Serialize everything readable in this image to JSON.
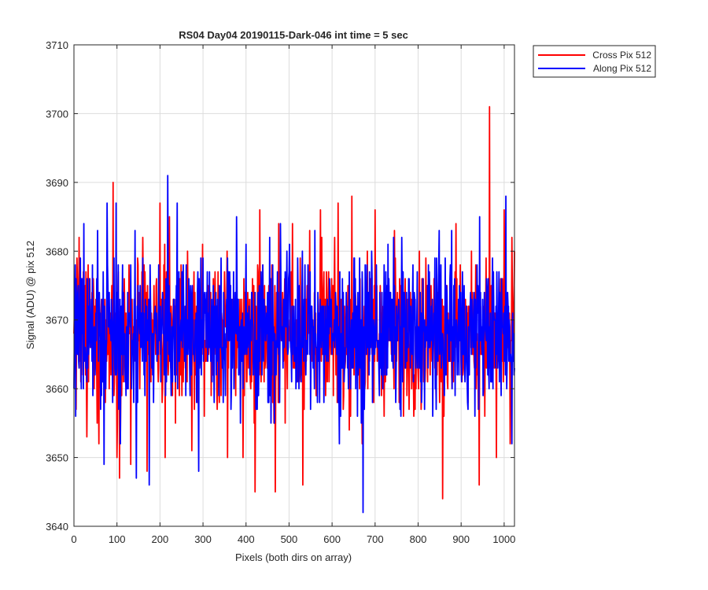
{
  "chart_data": {
    "type": "line",
    "title": "RS04 Day04 20190115-Dark-046 int time = 5 sec",
    "xlabel": "Pixels (both dirs on array)",
    "ylabel": "Signal (ADU) @ pix 512",
    "xlim": [
      0,
      1024
    ],
    "ylim": [
      3640,
      3710
    ],
    "x_ticks": [
      0,
      100,
      200,
      300,
      400,
      500,
      600,
      700,
      800,
      900,
      1000
    ],
    "y_ticks": [
      3640,
      3650,
      3660,
      3670,
      3680,
      3690,
      3700,
      3710
    ],
    "grid": true,
    "legend_position": "outside-top-right",
    "series": [
      {
        "name": "Cross Pix 512",
        "color": "#ff0000",
        "anchor_points": [
          [
            0,
            3668
          ],
          [
            12,
            3682
          ],
          [
            30,
            3653
          ],
          [
            58,
            3652
          ],
          [
            91,
            3690
          ],
          [
            100,
            3650
          ],
          [
            106,
            3647
          ],
          [
            132,
            3649
          ],
          [
            160,
            3682
          ],
          [
            170,
            3648
          ],
          [
            200,
            3687
          ],
          [
            212,
            3650
          ],
          [
            222,
            3685
          ],
          [
            274,
            3651
          ],
          [
            333,
            3657
          ],
          [
            357,
            3650
          ],
          [
            393,
            3650
          ],
          [
            421,
            3645
          ],
          [
            432,
            3686
          ],
          [
            468,
            3645
          ],
          [
            476,
            3684
          ],
          [
            508,
            3684
          ],
          [
            532,
            3646
          ],
          [
            548,
            3683
          ],
          [
            573,
            3686
          ],
          [
            614,
            3687
          ],
          [
            646,
            3688
          ],
          [
            670,
            3652
          ],
          [
            700,
            3686
          ],
          [
            745,
            3683
          ],
          [
            818,
            3679
          ],
          [
            857,
            3644
          ],
          [
            888,
            3684
          ],
          [
            942,
            3646
          ],
          [
            966,
            3701
          ],
          [
            982,
            3650
          ],
          [
            1000,
            3686
          ],
          [
            1014,
            3652
          ],
          [
            1024,
            3680
          ]
        ]
      },
      {
        "name": "Along Pix 512",
        "color": "#0000ff",
        "anchor_points": [
          [
            0,
            3660
          ],
          [
            4,
            3656
          ],
          [
            23,
            3684
          ],
          [
            53,
            3676
          ],
          [
            70,
            3649
          ],
          [
            77,
            3687
          ],
          [
            98,
            3687
          ],
          [
            108,
            3652
          ],
          [
            142,
            3683
          ],
          [
            145,
            3647
          ],
          [
            175,
            3646
          ],
          [
            218,
            3691
          ],
          [
            240,
            3687
          ],
          [
            254,
            3678
          ],
          [
            290,
            3648
          ],
          [
            295,
            3679
          ],
          [
            342,
            3679
          ],
          [
            378,
            3685
          ],
          [
            400,
            3681
          ],
          [
            455,
            3682
          ],
          [
            480,
            3684
          ],
          [
            501,
            3681
          ],
          [
            520,
            3679
          ],
          [
            560,
            3683
          ],
          [
            576,
            3672
          ],
          [
            617,
            3652
          ],
          [
            672,
            3642
          ],
          [
            692,
            3680
          ],
          [
            730,
            3681
          ],
          [
            762,
            3682
          ],
          [
            839,
            3679
          ],
          [
            878,
            3683
          ],
          [
            901,
            3661
          ],
          [
            943,
            3685
          ],
          [
            995,
            3669
          ],
          [
            1004,
            3688
          ],
          [
            1018,
            3652
          ],
          [
            1024,
            3663
          ]
        ]
      }
    ]
  }
}
